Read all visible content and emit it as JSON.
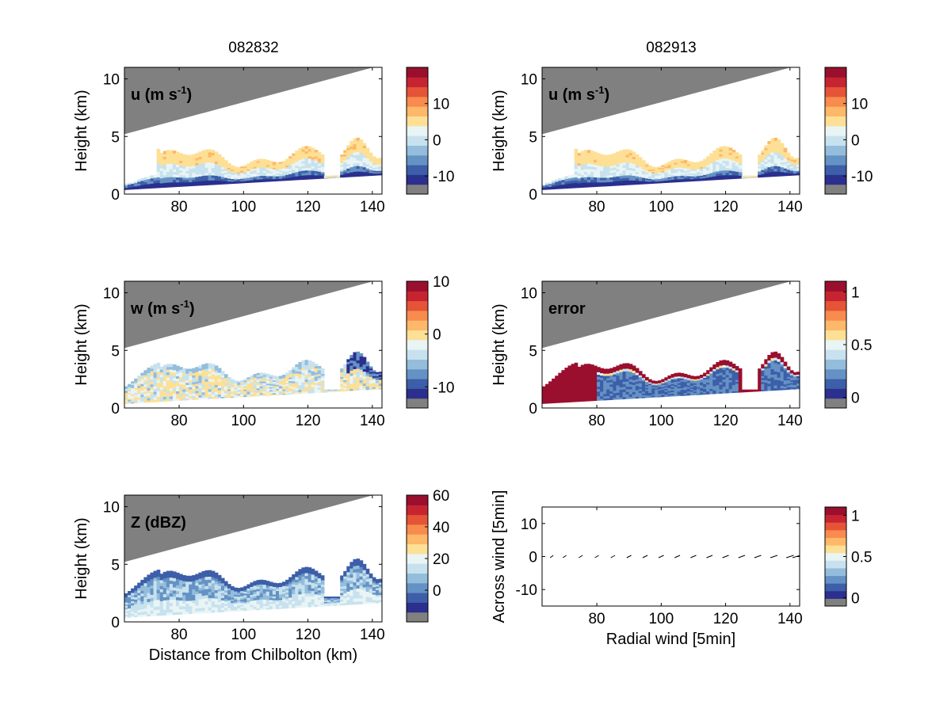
{
  "figure": {
    "column_titles": [
      "082832",
      "082913"
    ]
  },
  "colors": {
    "background": "#ffffff",
    "masked_gray": "#808080",
    "palette": [
      "#2b2f8e",
      "#3d5ea8",
      "#6592c4",
      "#94bddc",
      "#c7e2ee",
      "#e9f4f5",
      "#fde095",
      "#fdb86a",
      "#f88b4e",
      "#e55436",
      "#c72431",
      "#9a0f2e"
    ]
  },
  "chart_data": [
    {
      "id": "u-left",
      "type": "heatmap",
      "label": "u (m s",
      "label_sup": "-1",
      "label_tail": ")",
      "ylabel": "Height (km)",
      "xlabel": "",
      "xlim": [
        63,
        143
      ],
      "ylim": [
        0,
        11
      ],
      "xticks": [
        "80",
        "100",
        "120",
        "140"
      ],
      "xtick_values": [
        80,
        100,
        120,
        140
      ],
      "yticks": [
        "0",
        "5",
        "10"
      ],
      "ytick_values": [
        0,
        5,
        10
      ],
      "colorbar": {
        "ticks": [
          "-10",
          "0",
          "10"
        ],
        "tick_values": [
          -10,
          0,
          10
        ],
        "range": [
          -15,
          20
        ],
        "levels": 12
      }
    },
    {
      "id": "u-right",
      "type": "heatmap",
      "label": "u (m s",
      "label_sup": "-1",
      "label_tail": ")",
      "ylabel": "Height (km)",
      "xlabel": "",
      "xlim": [
        63,
        143
      ],
      "ylim": [
        0,
        11
      ],
      "xticks": [
        "80",
        "100",
        "120",
        "140"
      ],
      "xtick_values": [
        80,
        100,
        120,
        140
      ],
      "yticks": [
        "0",
        "5",
        "10"
      ],
      "ytick_values": [
        0,
        5,
        10
      ],
      "colorbar": {
        "ticks": [
          "-10",
          "0",
          "10"
        ],
        "tick_values": [
          -10,
          0,
          10
        ],
        "range": [
          -15,
          20
        ],
        "levels": 12
      }
    },
    {
      "id": "w-left",
      "type": "heatmap",
      "label": "w (m s",
      "label_sup": "-1",
      "label_tail": ")",
      "ylabel": "Height (km)",
      "xlabel": "",
      "xlim": [
        63,
        143
      ],
      "ylim": [
        0,
        11
      ],
      "xticks": [
        "80",
        "100",
        "120",
        "140"
      ],
      "xtick_values": [
        80,
        100,
        120,
        140
      ],
      "yticks": [
        "0",
        "5",
        "10"
      ],
      "ytick_values": [
        0,
        5,
        10
      ],
      "colorbar": {
        "ticks": [
          "-10",
          "0",
          "10"
        ],
        "tick_values": [
          -10,
          0,
          10
        ],
        "range": [
          -14,
          10
        ],
        "levels": 12
      }
    },
    {
      "id": "error-right",
      "type": "heatmap",
      "label": "error",
      "label_sup": "",
      "label_tail": "",
      "ylabel": "Height (km)",
      "xlabel": "",
      "xlim": [
        63,
        143
      ],
      "ylim": [
        0,
        11
      ],
      "xticks": [
        "80",
        "100",
        "120",
        "140"
      ],
      "xtick_values": [
        80,
        100,
        120,
        140
      ],
      "yticks": [
        "0",
        "5",
        "10"
      ],
      "ytick_values": [
        0,
        5,
        10
      ],
      "colorbar": {
        "ticks": [
          "0",
          "0.5",
          "1"
        ],
        "tick_values": [
          0,
          0.5,
          1
        ],
        "range": [
          -0.1,
          1.1
        ],
        "levels": 12
      }
    },
    {
      "id": "z-left",
      "type": "heatmap",
      "label": "Z (dBZ)",
      "label_sup": "",
      "label_tail": "",
      "ylabel": "Height (km)",
      "xlabel": "Distance from Chilbolton (km)",
      "xlim": [
        63,
        143
      ],
      "ylim": [
        0,
        11
      ],
      "xticks": [
        "80",
        "100",
        "120",
        "140"
      ],
      "xtick_values": [
        80,
        100,
        120,
        140
      ],
      "yticks": [
        "0",
        "5",
        "10"
      ],
      "ytick_values": [
        0,
        5,
        10
      ],
      "colorbar": {
        "ticks": [
          "0",
          "20",
          "40",
          "60"
        ],
        "tick_values": [
          0,
          20,
          40,
          60
        ],
        "range": [
          -20,
          60
        ],
        "levels": 12
      }
    },
    {
      "id": "vectors-right",
      "type": "scatter",
      "label": "",
      "label_sup": "",
      "label_tail": "",
      "ylabel": "Across wind [5min]",
      "xlabel": "Radial wind [5min]",
      "xlim": [
        63,
        143
      ],
      "ylim": [
        -15,
        15
      ],
      "xticks": [
        "80",
        "100",
        "120",
        "140"
      ],
      "xtick_values": [
        80,
        100,
        120,
        140
      ],
      "yticks": [
        "-10",
        "0",
        "10"
      ],
      "ytick_values": [
        -10,
        0,
        10
      ],
      "colorbar": {
        "ticks": [
          "0",
          "0.5",
          "1"
        ],
        "tick_values": [
          0,
          0.5,
          1
        ],
        "range": [
          -0.1,
          1.1
        ],
        "levels": 12
      },
      "arrows_x": [
        66,
        70,
        75,
        80,
        85,
        90,
        95,
        100,
        105,
        110,
        115,
        120,
        125,
        130,
        135,
        140,
        142
      ]
    }
  ]
}
